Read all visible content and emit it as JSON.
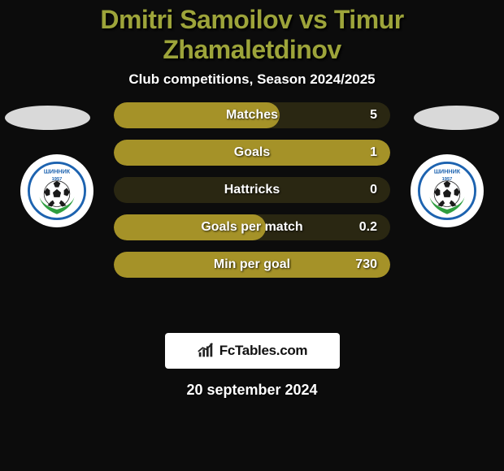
{
  "title_color": "#9da43a",
  "player1": "Dmitri Samoilov",
  "vs": "vs",
  "player2": "Timur Zhamaletdinov",
  "subtitle": "Club competitions, Season 2024/2025",
  "bars": {
    "bg_empty": "#2a2712",
    "bg_fill": "#a59228",
    "items": [
      {
        "label": "Matches",
        "value": "5",
        "fill_pct": 60
      },
      {
        "label": "Goals",
        "value": "1",
        "fill_pct": 100
      },
      {
        "label": "Hattricks",
        "value": "0",
        "fill_pct": 0
      },
      {
        "label": "Goals per match",
        "value": "0.2",
        "fill_pct": 55
      },
      {
        "label": "Min per goal",
        "value": "730",
        "fill_pct": 100
      }
    ]
  },
  "club_badge": {
    "text_top": "ШИННИК",
    "year": "1957",
    "ring_color": "#1d63b0",
    "ball_colors": {
      "hex1": "#1a1a1a",
      "hex2": "#ffffff"
    },
    "leaf_color": "#2f9e3f"
  },
  "brand": {
    "icon_color": "#222222",
    "text": "FcTables.com"
  },
  "timestamp": "20 september 2024"
}
